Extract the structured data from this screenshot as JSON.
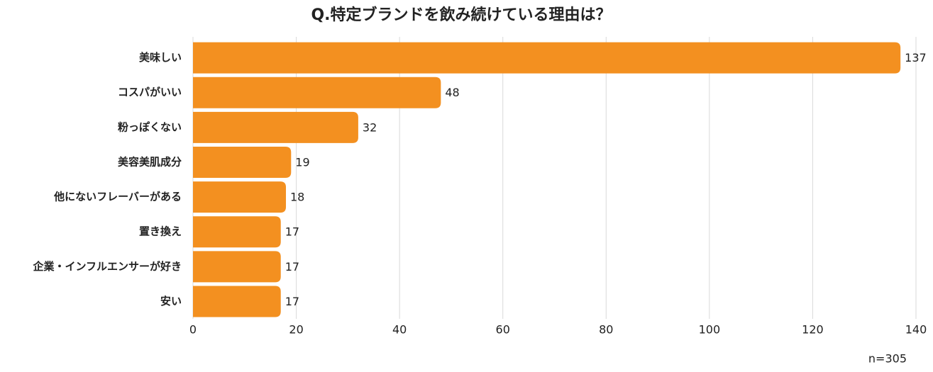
{
  "chart_data": {
    "type": "bar",
    "orientation": "horizontal",
    "title": "Q.特定ブランドを飲み続けている理由は？",
    "categories": [
      "美味しい",
      "コスパがいい",
      "粉っぽくない",
      "美容美肌成分",
      "他にないフレーバーがある",
      "置き換え",
      "企業・インフルエンサーが好き",
      "安い"
    ],
    "values": [
      137,
      48,
      32,
      19,
      18,
      17,
      17,
      17
    ],
    "color": "#f39020",
    "xlim": [
      0,
      140
    ],
    "xticks": [
      0,
      20,
      40,
      60,
      80,
      100,
      120,
      140
    ],
    "grid": true,
    "annotation": "n=305"
  }
}
